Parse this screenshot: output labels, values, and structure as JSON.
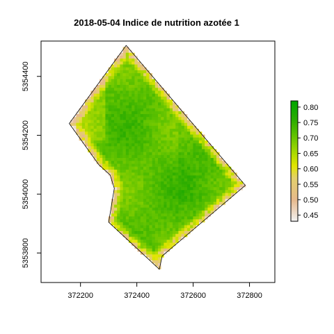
{
  "chart_data": {
    "type": "heatmap",
    "title": "2018-05-04 Indice de nutrition azotée 1",
    "xlabel": "",
    "ylabel": "",
    "xlim": [
      372060,
      372890
    ],
    "ylim": [
      5353700,
      5354520
    ],
    "x_ticks": [
      372200,
      372400,
      372600,
      372800
    ],
    "x_tick_labels": [
      "372200",
      "372400",
      "372600",
      "372800"
    ],
    "y_ticks": [
      5353800,
      5354000,
      5354200,
      5354400
    ],
    "y_tick_labels": [
      "5353800",
      "5354000",
      "5354200",
      "5354400"
    ],
    "field_boundary": [
      [
        372362,
        5354505
      ],
      [
        372785,
        5354030
      ],
      [
        372490,
        5353790
      ],
      [
        372480,
        5353745
      ],
      [
        372300,
        5353905
      ],
      [
        372320,
        5354020
      ],
      [
        372305,
        5354065
      ],
      [
        372265,
        5354100
      ],
      [
        372160,
        5354240
      ]
    ],
    "legend": {
      "min": 0.43,
      "max": 0.82,
      "ticks": [
        0.45,
        0.5,
        0.55,
        0.6,
        0.65,
        0.7,
        0.75,
        0.8
      ],
      "tick_labels": [
        "0.45",
        "0.50",
        "0.55",
        "0.60",
        "0.65",
        "0.70",
        "0.75",
        "0.80"
      ],
      "color_stops": [
        {
          "value": 0.43,
          "color": "#f3f3f3"
        },
        {
          "value": 0.5,
          "color": "#e6b98c"
        },
        {
          "value": 0.57,
          "color": "#e3cf6c"
        },
        {
          "value": 0.61,
          "color": "#e2e600"
        },
        {
          "value": 0.66,
          "color": "#9fd600"
        },
        {
          "value": 0.71,
          "color": "#5fc200"
        },
        {
          "value": 0.76,
          "color": "#2aac00"
        },
        {
          "value": 0.82,
          "color": "#00a600"
        }
      ]
    }
  }
}
